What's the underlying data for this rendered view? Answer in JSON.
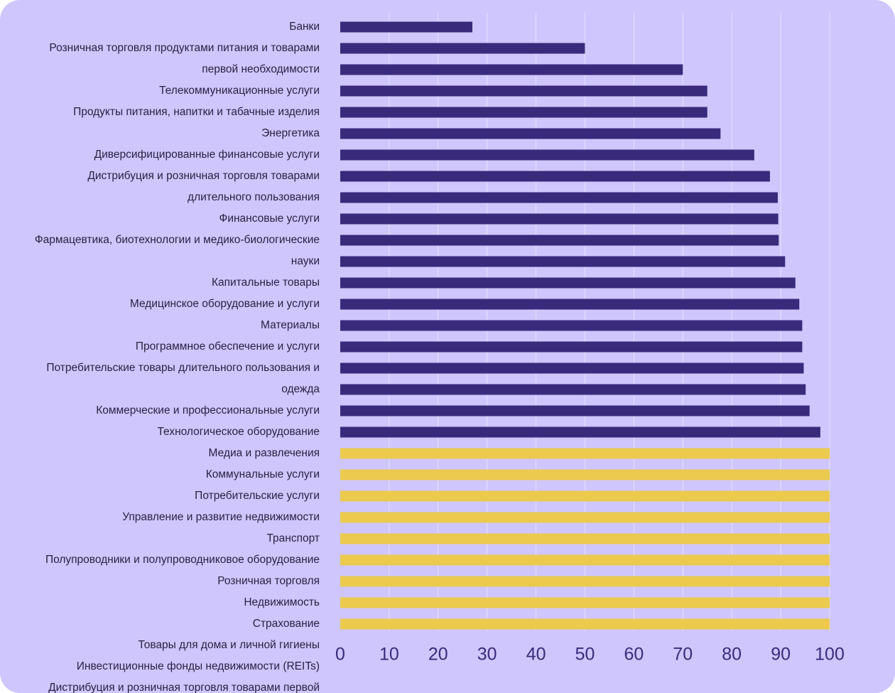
{
  "colors": {
    "background": "#cfc6fd",
    "bar_primary": "#3a2a7c",
    "bar_highlight": "#ebca4d",
    "label_text": "#2a2144",
    "tick_text": "#3a2a7c",
    "grid": "#e6e1ff"
  },
  "chart_data": {
    "type": "bar",
    "orientation": "horizontal",
    "title": "",
    "xlabel": "",
    "ylabel": "",
    "xlim": [
      0,
      100
    ],
    "xticks": [
      0,
      10,
      20,
      30,
      40,
      50,
      60,
      70,
      80,
      90,
      100
    ],
    "grid": true,
    "legend": "none",
    "categories": [
      "Банки",
      "Розничная торговля продуктами питания и товарами",
      "первой необходимости",
      "Телекоммуникационные услуги",
      "Продукты питания, напитки и табачные изделия",
      "Энергетика",
      "Диверсифицированные финансовые услуги",
      "Дистрибуция и розничная торговля товарами",
      "длительного пользования",
      "Финансовые услуги",
      "Фармацевтика, биотехнологии и медико-биологические",
      "науки",
      "Капитальные товары",
      "Медицинское оборудование и услуги",
      "Материалы",
      "Программное обеспечение и услуги",
      "Потребительские товары длительного пользования и",
      "одежда",
      "Коммерческие и профессиональные услуги",
      "Технологическое оборудование",
      "Медиа и развлечения",
      "Коммунальные услуги",
      "Потребительские услуги",
      "Управление и развитие недвижимости",
      "Транспорт",
      "Полупроводники и полупроводниковое оборудование",
      "Розничная торговля",
      "Недвижимость",
      "Страхование"
    ],
    "values": [
      27,
      50,
      70,
      75,
      75,
      77.7,
      84.6,
      87.8,
      89.4,
      89.5,
      89.6,
      90.9,
      93,
      93.8,
      94.4,
      94.4,
      94.7,
      95.1,
      95.9,
      98.1,
      100,
      100,
      100,
      100,
      100,
      100,
      100,
      100,
      100
    ],
    "highlight": [
      false,
      false,
      false,
      false,
      false,
      false,
      false,
      false,
      false,
      false,
      false,
      false,
      false,
      false,
      false,
      false,
      false,
      false,
      false,
      false,
      true,
      true,
      true,
      true,
      true,
      true,
      true,
      true,
      true
    ],
    "extra_labels": [
      "Товары для дома и личной гигиены",
      "Инвестиционные фонды недвижимости (REITs)",
      "Дистрибуция и розничная торговля товарами первой"
    ]
  }
}
